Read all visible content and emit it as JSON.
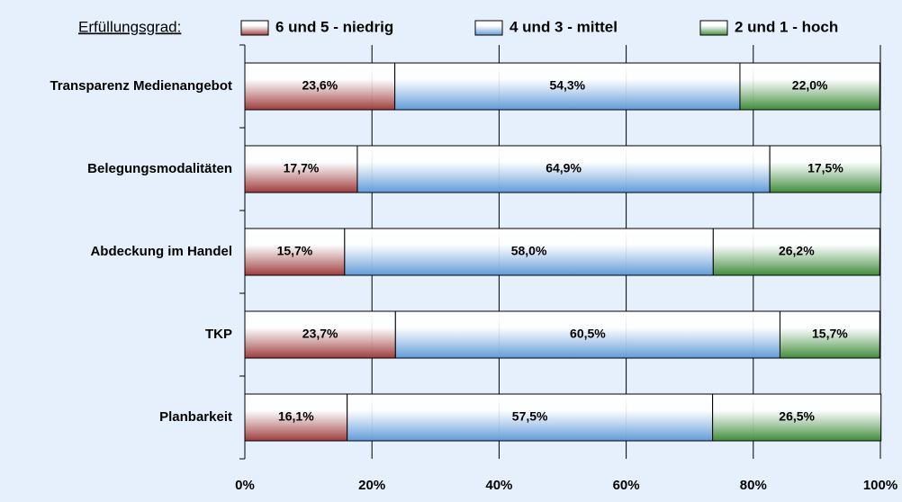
{
  "chart_data": {
    "type": "stacked-barh",
    "legend_title": "Erfüllungsgrad:",
    "categories": [
      "Transparenz Medienangebot",
      "Belegungsmodalitäten",
      "Abdeckung im Handel",
      "TKP",
      "Planbarkeit"
    ],
    "series": [
      {
        "name": "6 und 5 - niedrig",
        "color": "#9e3c3c",
        "values": [
          23.6,
          17.7,
          15.7,
          23.7,
          16.1
        ],
        "value_labels": [
          "23,6%",
          "17,7%",
          "15,7%",
          "23,7%",
          "16,1%"
        ]
      },
      {
        "name": "4 und 3 - mittel",
        "color": "#5f9ad8",
        "values": [
          54.3,
          64.9,
          58.0,
          60.5,
          57.5
        ],
        "value_labels": [
          "54,3%",
          "64,9%",
          "58,0%",
          "60,5%",
          "57,5%"
        ]
      },
      {
        "name": "2 und 1 - hoch",
        "color": "#3f8c3a",
        "values": [
          22.0,
          17.5,
          26.2,
          15.7,
          26.5
        ],
        "value_labels": [
          "22,0%",
          "17,5%",
          "26,2%",
          "15,7%",
          "26,5%"
        ]
      }
    ],
    "xlim": [
      0,
      100
    ],
    "xticks": [
      {
        "value": 0,
        "label": "0%"
      },
      {
        "value": 20,
        "label": "20%"
      },
      {
        "value": 40,
        "label": "40%"
      },
      {
        "value": 60,
        "label": "60%"
      },
      {
        "value": 80,
        "label": "80%"
      },
      {
        "value": 100,
        "label": "100%"
      }
    ],
    "grid": true,
    "legend": "top"
  }
}
